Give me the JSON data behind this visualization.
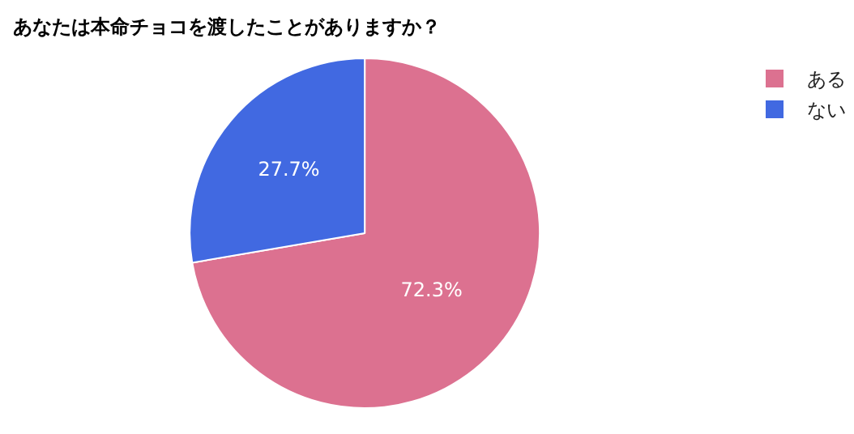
{
  "chart_data": {
    "type": "pie",
    "title": "あなたは本命チョコを渡したことがありますか？",
    "categories": [
      "ある",
      "ない"
    ],
    "values": [
      72.3,
      27.7
    ],
    "colors": [
      "#dc7190",
      "#4169e1"
    ],
    "value_labels": [
      "72.3%",
      "27.7%"
    ],
    "legend": "right"
  }
}
